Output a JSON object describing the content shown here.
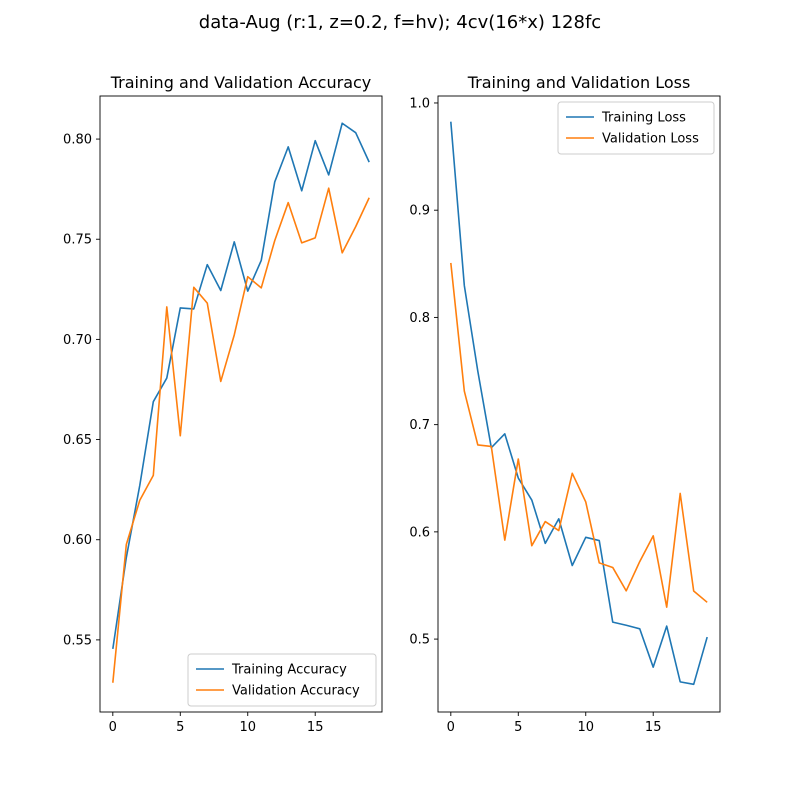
{
  "suptitle": "data-Aug (r:1, z=0.2, f=hv); 4cv(16*x) 128fc",
  "colors": {
    "series1": "#1f77b4",
    "series2": "#ff7f0e"
  },
  "chart_data": [
    {
      "type": "line",
      "title": "Training and Validation Accuracy",
      "xlim": [
        -0.95,
        19.95
      ],
      "ylim": [
        0.514,
        0.8215
      ],
      "xticks": [
        0,
        5,
        10,
        15
      ],
      "yticks": [
        0.55,
        0.6,
        0.65,
        0.7,
        0.75,
        0.8
      ],
      "ytick_labels": [
        "0.55",
        "0.60",
        "0.65",
        "0.70",
        "0.75",
        "0.80"
      ],
      "legend": "lower-right",
      "grid": false,
      "x": [
        0,
        1,
        2,
        3,
        4,
        5,
        6,
        7,
        8,
        9,
        10,
        11,
        12,
        13,
        14,
        15,
        16,
        17,
        18,
        19
      ],
      "series": [
        {
          "name": "Training Accuracy",
          "color": "#1f77b4",
          "values": [
            0.5455,
            0.5911,
            0.6272,
            0.6689,
            0.6807,
            0.7157,
            0.7152,
            0.7373,
            0.7244,
            0.7487,
            0.7241,
            0.7394,
            0.7786,
            0.7961,
            0.7742,
            0.7992,
            0.7821,
            0.8079,
            0.8032,
            0.7885
          ]
        },
        {
          "name": "Validation Accuracy",
          "color": "#ff7f0e",
          "values": [
            0.5286,
            0.5976,
            0.6197,
            0.6321,
            0.7162,
            0.6519,
            0.726,
            0.7181,
            0.679,
            0.7022,
            0.7313,
            0.7257,
            0.7493,
            0.7683,
            0.7482,
            0.7507,
            0.7755,
            0.7432,
            0.7563,
            0.7707
          ]
        }
      ]
    },
    {
      "type": "line",
      "title": "Training and Validation Loss",
      "xlim": [
        -0.95,
        19.95
      ],
      "ylim": [
        0.432,
        1.0065
      ],
      "xticks": [
        0,
        5,
        10,
        15
      ],
      "yticks": [
        0.5,
        0.6,
        0.7,
        0.8,
        0.9,
        1.0
      ],
      "ytick_labels": [
        "0.5",
        "0.6",
        "0.7",
        "0.8",
        "0.9",
        "1.0"
      ],
      "legend": "upper-right",
      "grid": false,
      "x": [
        0,
        1,
        2,
        3,
        4,
        5,
        6,
        7,
        8,
        9,
        10,
        11,
        12,
        13,
        14,
        15,
        16,
        17,
        18,
        19
      ],
      "series": [
        {
          "name": "Training Loss",
          "color": "#1f77b4",
          "values": [
            0.9825,
            0.8298,
            0.7499,
            0.6785,
            0.6914,
            0.6502,
            0.6297,
            0.5893,
            0.6122,
            0.5686,
            0.5949,
            0.5919,
            0.5158,
            0.5129,
            0.5096,
            0.4738,
            0.5121,
            0.4601,
            0.4578,
            0.5019
          ]
        },
        {
          "name": "Validation Loss",
          "color": "#ff7f0e",
          "values": [
            0.8508,
            0.7313,
            0.6811,
            0.6797,
            0.5923,
            0.6679,
            0.5871,
            0.6096,
            0.6012,
            0.6546,
            0.6279,
            0.5711,
            0.5668,
            0.545,
            0.5723,
            0.5963,
            0.5298,
            0.6358,
            0.5448,
            0.5343
          ]
        }
      ]
    }
  ]
}
